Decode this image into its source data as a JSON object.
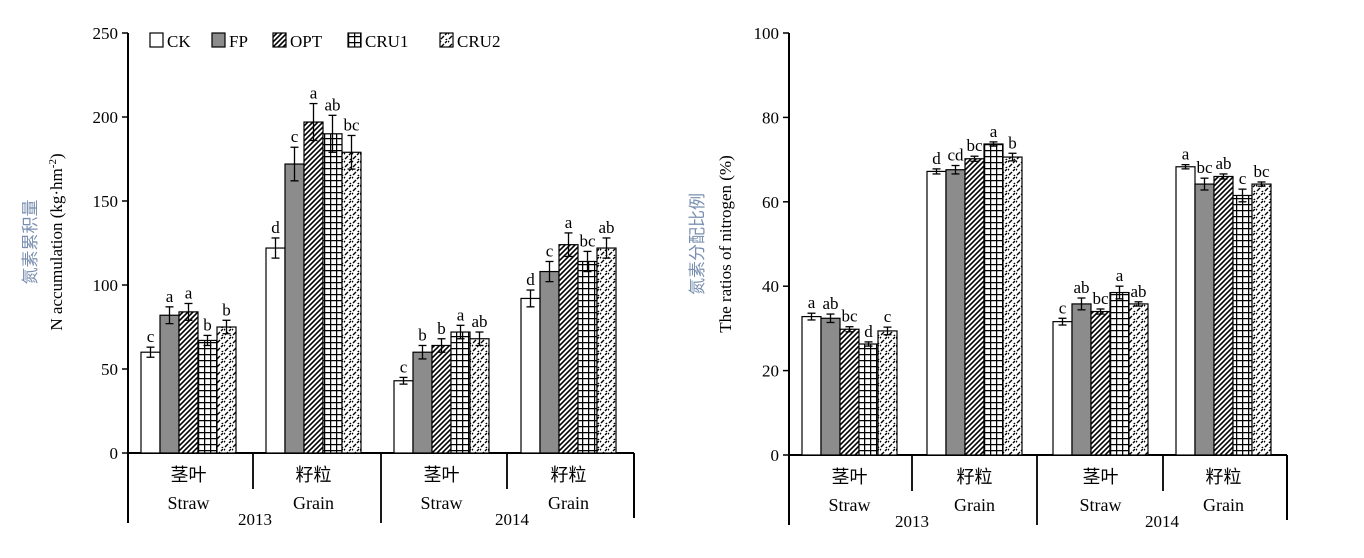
{
  "legend": {
    "position": "top-left (inside left chart)",
    "entries": [
      {
        "label": "CK",
        "pattern": "white"
      },
      {
        "label": "FP",
        "pattern": "gray"
      },
      {
        "label": "OPT",
        "pattern": "diagonal-dense"
      },
      {
        "label": "CRU1",
        "pattern": "grid"
      },
      {
        "label": "CRU2",
        "pattern": "diagonal-dash"
      }
    ]
  },
  "colors": {
    "gray_fill": "#8c8c8c",
    "axis": "#000000",
    "ylabel_cn": "#7a8fb0"
  },
  "chart_data": [
    {
      "type": "bar",
      "ylabel_cn": "氮素累积量",
      "ylabel_en": "N accumulation (kg·hm",
      "ylabel_en_sup": "-2",
      "ylabel_en_close": ")",
      "ylim": [
        0,
        250
      ],
      "yticks": [
        0,
        50,
        100,
        150,
        200,
        250
      ],
      "grid": false,
      "groups": [
        {
          "cn": "茎叶",
          "en": "Straw"
        },
        {
          "cn": "籽粒",
          "en": "Grain"
        },
        {
          "cn": "茎叶",
          "en": "Straw"
        },
        {
          "cn": "籽粒",
          "en": "Grain"
        }
      ],
      "years": [
        "2013",
        "2014"
      ],
      "series": [
        {
          "name": "CK",
          "values": [
            60,
            122,
            43,
            92
          ],
          "errors": [
            3,
            6,
            2,
            5
          ],
          "letters": [
            "c",
            "d",
            "c",
            "d"
          ]
        },
        {
          "name": "FP",
          "values": [
            82,
            172,
            60,
            108
          ],
          "errors": [
            5,
            10,
            4,
            6
          ],
          "letters": [
            "a",
            "c",
            "b",
            "c"
          ]
        },
        {
          "name": "OPT",
          "values": [
            84,
            197,
            64,
            124
          ],
          "errors": [
            5,
            11,
            4,
            7
          ],
          "letters": [
            "a",
            "a",
            "b",
            "a"
          ]
        },
        {
          "name": "CRU1",
          "values": [
            67,
            190,
            72,
            114
          ],
          "errors": [
            3,
            11,
            4,
            6
          ],
          "letters": [
            "b",
            "ab",
            "a",
            "bc"
          ]
        },
        {
          "name": "CRU2",
          "values": [
            75,
            179,
            68,
            122
          ],
          "errors": [
            4,
            10,
            4,
            6
          ],
          "letters": [
            "b",
            "bc",
            "ab",
            "ab"
          ]
        }
      ]
    },
    {
      "type": "bar",
      "ylabel_cn": "氮素分配比例",
      "ylabel_en": "The ratios of nitrogen (%)",
      "ylim": [
        0,
        100
      ],
      "yticks": [
        0,
        20,
        40,
        60,
        80,
        100
      ],
      "grid": false,
      "groups": [
        {
          "cn": "茎叶",
          "en": "Straw"
        },
        {
          "cn": "籽粒",
          "en": "Grain"
        },
        {
          "cn": "茎叶",
          "en": "Straw"
        },
        {
          "cn": "籽粒",
          "en": "Grain"
        }
      ],
      "years": [
        "2013",
        "2014"
      ],
      "series": [
        {
          "name": "CK",
          "values": [
            32.8,
            67.2,
            31.6,
            68.3
          ],
          "errors": [
            0.8,
            0.6,
            0.8,
            0.5
          ],
          "letters": [
            "a",
            "d",
            "c",
            "a"
          ]
        },
        {
          "name": "FP",
          "values": [
            32.4,
            67.6,
            35.8,
            64.2
          ],
          "errors": [
            1.0,
            1.0,
            1.4,
            1.4
          ],
          "letters": [
            "ab",
            "cd",
            "ab",
            "bc"
          ]
        },
        {
          "name": "OPT",
          "values": [
            29.8,
            70.2,
            34.0,
            66.0
          ],
          "errors": [
            0.6,
            0.6,
            0.6,
            0.6
          ],
          "letters": [
            "bc",
            "bc",
            "bc",
            "ab"
          ]
        },
        {
          "name": "CRU1",
          "values": [
            26.3,
            73.7,
            38.5,
            61.5
          ],
          "errors": [
            0.5,
            0.5,
            1.5,
            1.5
          ],
          "letters": [
            "d",
            "a",
            "a",
            "c"
          ]
        },
        {
          "name": "CRU2",
          "values": [
            29.4,
            70.6,
            35.8,
            64.2
          ],
          "errors": [
            0.9,
            0.9,
            0.5,
            0.5
          ],
          "letters": [
            "c",
            "b",
            "ab",
            "bc"
          ]
        }
      ]
    }
  ]
}
